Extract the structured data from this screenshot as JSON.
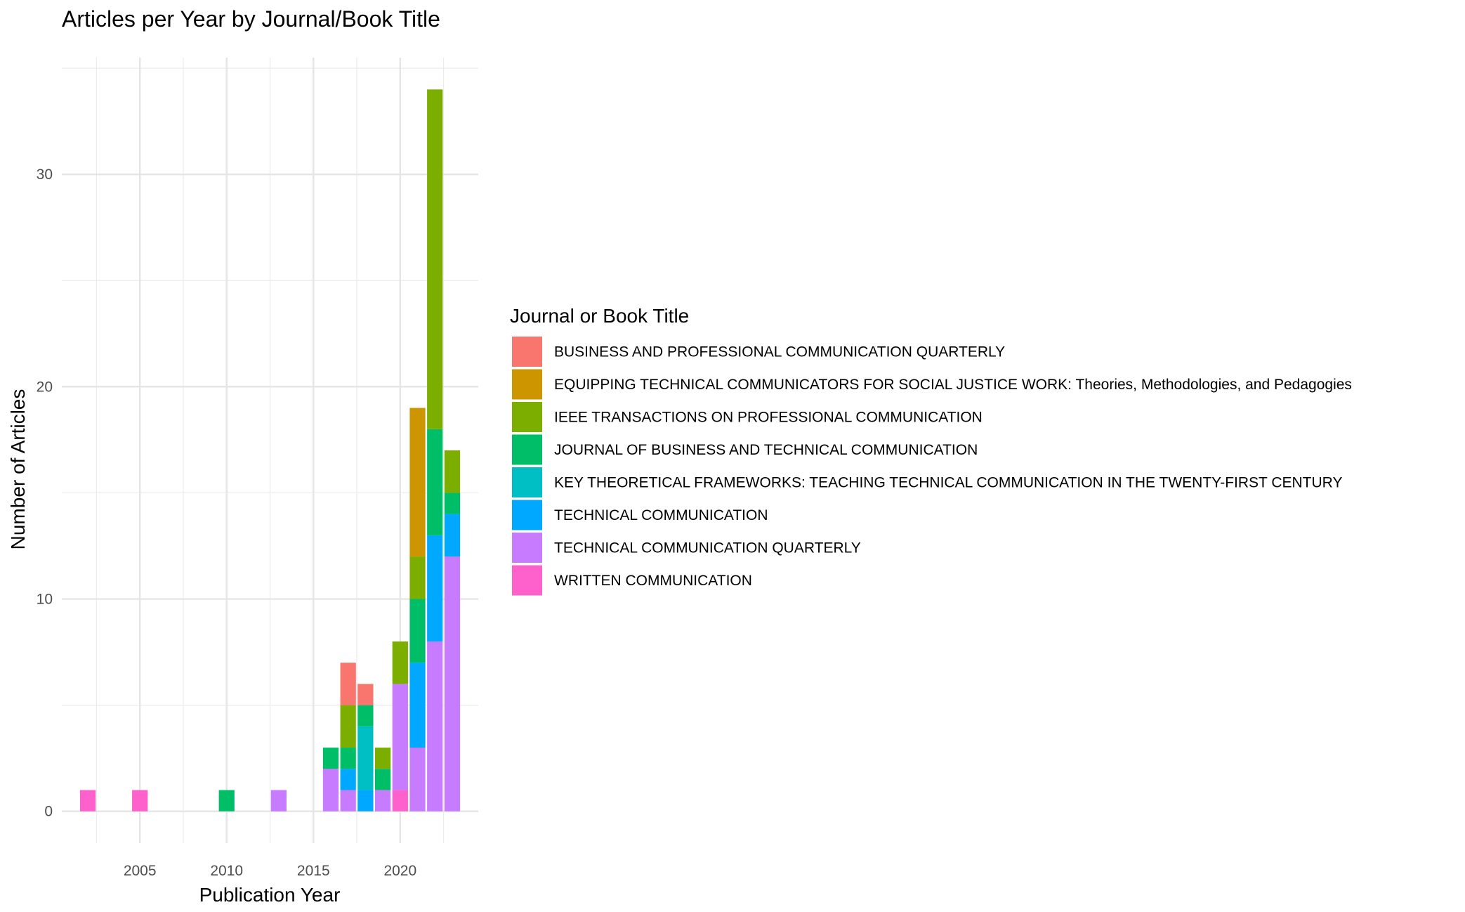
{
  "chart_data": {
    "type": "bar",
    "stacked": true,
    "title": "Articles per Year by Journal/Book Title",
    "xlabel": "Publication Year",
    "ylabel": "Number of Articles",
    "xlim": [
      2000.5,
      2024.5
    ],
    "ylim": [
      -1.5,
      35.5
    ],
    "x_ticks": [
      2005,
      2010,
      2015,
      2020
    ],
    "y_ticks": [
      0,
      10,
      20,
      30
    ],
    "grid": true,
    "legend": {
      "title": "Journal or Book Title",
      "position": "right"
    },
    "categories": [
      2002,
      2005,
      2010,
      2013,
      2016,
      2017,
      2018,
      2019,
      2020,
      2021,
      2022,
      2023
    ],
    "series": [
      {
        "name": "BUSINESS AND PROFESSIONAL COMMUNICATION QUARTERLY",
        "color": "#F8766D",
        "values": [
          0,
          0,
          0,
          0,
          0,
          2,
          1,
          0,
          0,
          0,
          0,
          0
        ]
      },
      {
        "name": "EQUIPPING TECHNICAL COMMUNICATORS FOR SOCIAL JUSTICE WORK: Theories, Methodologies, and Pedagogies",
        "color": "#CD9600",
        "values": [
          0,
          0,
          0,
          0,
          0,
          0,
          0,
          0,
          0,
          7,
          0,
          0
        ]
      },
      {
        "name": "IEEE TRANSACTIONS ON PROFESSIONAL COMMUNICATION",
        "color": "#7CAE00",
        "values": [
          0,
          0,
          0,
          0,
          0,
          2,
          0,
          1,
          2,
          2,
          16,
          2
        ]
      },
      {
        "name": "JOURNAL OF BUSINESS AND TECHNICAL COMMUNICATION",
        "color": "#00BE67",
        "values": [
          0,
          0,
          1,
          0,
          1,
          1,
          1,
          1,
          0,
          3,
          5,
          1
        ]
      },
      {
        "name": "KEY THEORETICAL FRAMEWORKS: TEACHING TECHNICAL COMMUNICATION IN THE TWENTY-FIRST CENTURY",
        "color": "#00BFC4",
        "values": [
          0,
          0,
          0,
          0,
          0,
          0,
          3,
          0,
          0,
          0,
          0,
          0
        ]
      },
      {
        "name": "TECHNICAL COMMUNICATION",
        "color": "#00A9FF",
        "values": [
          0,
          0,
          0,
          0,
          0,
          1,
          1,
          0,
          0,
          4,
          5,
          2
        ]
      },
      {
        "name": "TECHNICAL COMMUNICATION QUARTERLY",
        "color": "#C77CFF",
        "values": [
          0,
          0,
          0,
          1,
          2,
          1,
          0,
          1,
          5,
          3,
          8,
          12
        ]
      },
      {
        "name": "WRITTEN COMMUNICATION",
        "color": "#FF61CC",
        "values": [
          1,
          1,
          0,
          0,
          0,
          0,
          0,
          0,
          1,
          0,
          0,
          0
        ]
      }
    ]
  }
}
